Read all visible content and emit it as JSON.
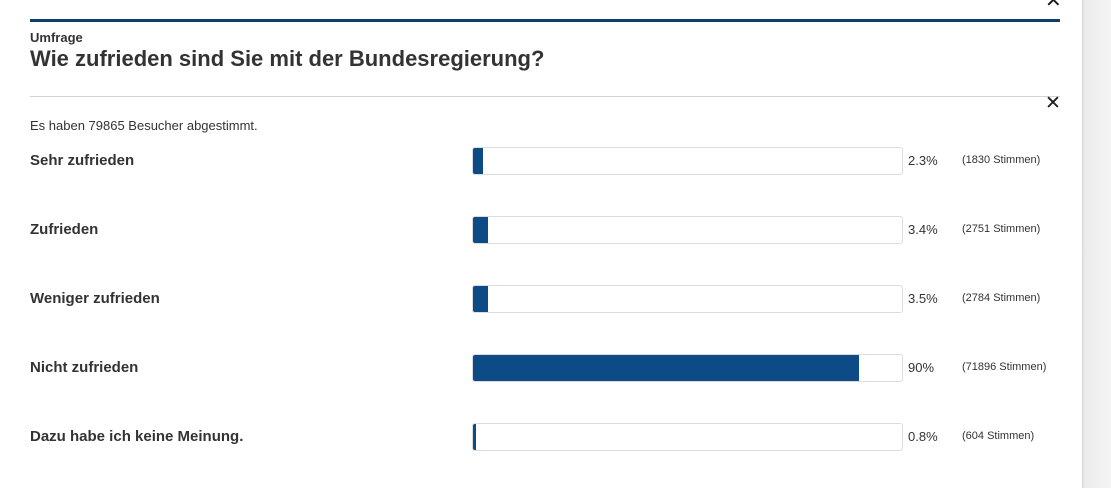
{
  "poll": {
    "kicker": "Umfrage",
    "question": "Wie zufrieden sind Sie mit der Bundesregierung?",
    "close_symbol": "✕",
    "total_votes_text": "Es haben 79865 Besucher abgestimmt.",
    "bar_color": "#0c4b85",
    "options": [
      {
        "label": "Sehr zufrieden",
        "fraction": 0.023,
        "percent": "2.3%",
        "votes": "(1830 Stimmen)"
      },
      {
        "label": "Zufrieden",
        "fraction": 0.034,
        "percent": "3.4%",
        "votes": "(2751 Stimmen)"
      },
      {
        "label": "Weniger zufrieden",
        "fraction": 0.035,
        "percent": "3.5%",
        "votes": "(2784 Stimmen)"
      },
      {
        "label": "Nicht zufrieden",
        "fraction": 0.9,
        "percent": "90%",
        "votes": "(71896 Stimmen)"
      },
      {
        "label": "Dazu habe ich keine Meinung.",
        "fraction": 0.008,
        "percent": "0.8%",
        "votes": "(604 Stimmen)"
      }
    ]
  }
}
